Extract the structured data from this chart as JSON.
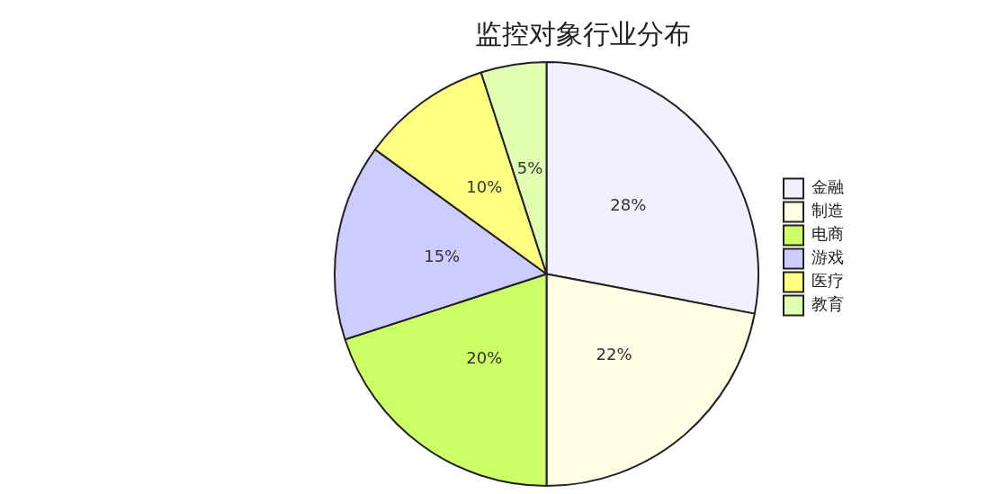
{
  "chart_data": {
    "type": "pie",
    "title": "监控对象行业分布",
    "categories": [
      "金融",
      "制造",
      "电商",
      "游戏",
      "医疗",
      "教育"
    ],
    "values": [
      28,
      22,
      20,
      15,
      10,
      5
    ],
    "colors": [
      "#f0f0ff",
      "#ffffe6",
      "#ccff66",
      "#ccccff",
      "#ffff80",
      "#e0ffb0"
    ],
    "value_labels": [
      "28%",
      "22%",
      "20%",
      "15%",
      "10%",
      "5%"
    ],
    "legend": "right"
  }
}
